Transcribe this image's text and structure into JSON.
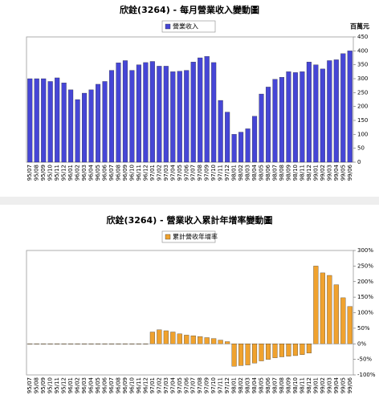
{
  "chart_data": [
    {
      "type": "bar",
      "title": "欣銓(3264) - 每月營業收入變動圖",
      "y_label": "百萬元",
      "categories": [
        "95/07",
        "95/08",
        "95/09",
        "95/10",
        "95/11",
        "95/12",
        "96/01",
        "96/02",
        "96/03",
        "96/04",
        "96/05",
        "96/06",
        "96/07",
        "96/08",
        "96/09",
        "96/10",
        "96/11",
        "96/12",
        "97/01",
        "97/02",
        "97/03",
        "97/04",
        "97/05",
        "97/06",
        "97/07",
        "97/08",
        "97/09",
        "97/10",
        "97/11",
        "97/12",
        "98/01",
        "98/02",
        "98/03",
        "98/04",
        "98/05",
        "98/06",
        "98/07",
        "98/08",
        "98/09",
        "98/10",
        "98/11",
        "98/12",
        "99/01",
        "99/02",
        "99/03",
        "99/04",
        "99/05",
        "99/06"
      ],
      "series": [
        {
          "name": "營業收入",
          "color": "#4646d6",
          "values": [
            300,
            300,
            300,
            290,
            303,
            285,
            260,
            225,
            248,
            260,
            280,
            290,
            330,
            357,
            365,
            330,
            350,
            358,
            362,
            345,
            345,
            325,
            327,
            330,
            360,
            375,
            380,
            358,
            222,
            180,
            100,
            108,
            120,
            165,
            245,
            270,
            298,
            305,
            325,
            322,
            325,
            360,
            350,
            335,
            365,
            368,
            390,
            400
          ]
        }
      ],
      "ylim": [
        0,
        450
      ],
      "yticks": [
        0,
        50,
        100,
        150,
        200,
        250,
        300,
        350,
        400,
        450
      ],
      "legend": "top"
    },
    {
      "type": "bar",
      "title": "欣銓(3264) -  營業收入累計年增率變動圖",
      "categories": [
        "95/07",
        "95/08",
        "95/09",
        "95/10",
        "95/11",
        "95/12",
        "96/01",
        "96/02",
        "96/03",
        "96/04",
        "96/05",
        "96/06",
        "96/07",
        "96/08",
        "96/09",
        "96/10",
        "96/11",
        "96/12",
        "97/01",
        "97/02",
        "97/03",
        "97/04",
        "97/05",
        "97/06",
        "97/07",
        "97/08",
        "97/09",
        "97/10",
        "97/11",
        "97/12",
        "98/01",
        "98/02",
        "98/03",
        "98/04",
        "98/05",
        "98/06",
        "98/07",
        "98/08",
        "98/09",
        "98/10",
        "98/11",
        "98/12",
        "99/01",
        "99/02",
        "99/03",
        "99/04",
        "99/05",
        "99/06"
      ],
      "series": [
        {
          "name": "累計營收年增率",
          "color": "#f0a22e",
          "values": [
            0,
            0,
            0,
            0,
            0,
            0,
            0,
            0,
            0,
            0,
            0,
            0,
            0,
            0,
            0,
            0,
            0,
            0,
            38,
            45,
            42,
            38,
            32,
            28,
            26,
            23,
            20,
            17,
            12,
            7,
            -72,
            -70,
            -68,
            -62,
            -55,
            -50,
            -45,
            -42,
            -40,
            -38,
            -35,
            -30,
            250,
            228,
            220,
            190,
            148,
            120
          ]
        }
      ],
      "ylim": [
        -100,
        300
      ],
      "yticks": [
        {
          "value": -100,
          "label": "-100%"
        },
        {
          "value": -50,
          "label": "-50%"
        },
        {
          "value": 0,
          "label": "0%"
        },
        {
          "value": 50,
          "label": "50%"
        },
        {
          "value": 100,
          "label": "100%"
        },
        {
          "value": 150,
          "label": "150%"
        },
        {
          "value": 200,
          "label": "200%"
        },
        {
          "value": 250,
          "label": "250%"
        },
        {
          "value": 300,
          "label": "300%"
        }
      ],
      "legend": "top"
    }
  ]
}
